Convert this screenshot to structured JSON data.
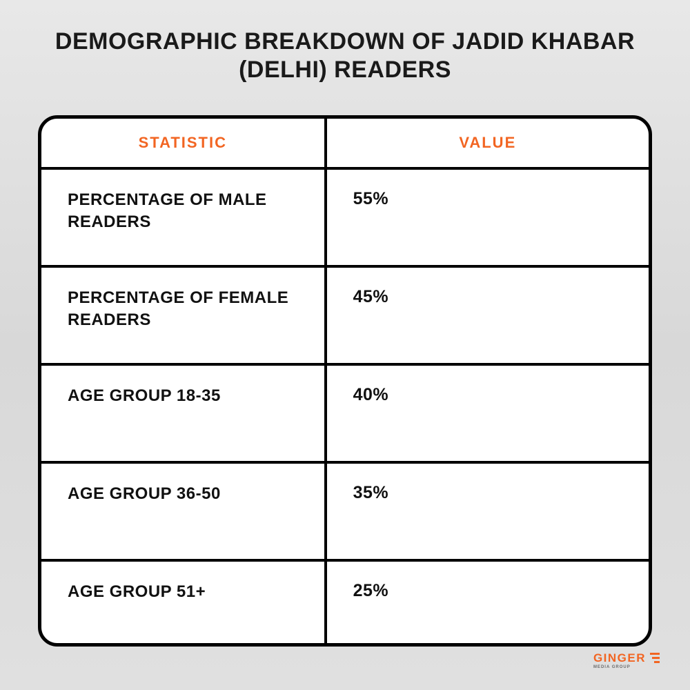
{
  "title": "DEMOGRAPHIC BREAKDOWN OF JADID KHABAR (DELHI) READERS",
  "table": {
    "type": "table",
    "header_color": "#f26522",
    "text_color": "#111111",
    "border_color": "#000000",
    "background_color": "#ffffff",
    "columns": [
      {
        "label": "STATISTIC",
        "width_pct": 47,
        "align": "center"
      },
      {
        "label": "VALUE",
        "width_pct": 53,
        "align": "center"
      }
    ],
    "rows": [
      {
        "statistic": "PERCENTAGE OF MALE READERS",
        "value": "55%"
      },
      {
        "statistic": "PERCENTAGE OF FEMALE READERS",
        "value": "45%"
      },
      {
        "statistic": "AGE GROUP 18-35",
        "value": "40%"
      },
      {
        "statistic": "AGE GROUP 36-50",
        "value": "35%"
      },
      {
        "statistic": "AGE GROUP 51+",
        "value": "25%"
      }
    ],
    "title_fontsize": 34,
    "header_fontsize": 22,
    "label_fontsize": 24,
    "value_fontsize": 25,
    "border_width": 5,
    "border_radius": 28
  },
  "logo": {
    "text": "GINGER",
    "subtext": "MEDIA GROUP",
    "color": "#f26522",
    "sub_color": "#6b6b6b",
    "fontsize": 17,
    "sub_fontsize": 6
  },
  "page_background": "linear-gradient(180deg,#e8e8e8,#d8d8d8,#e0e0e0)"
}
